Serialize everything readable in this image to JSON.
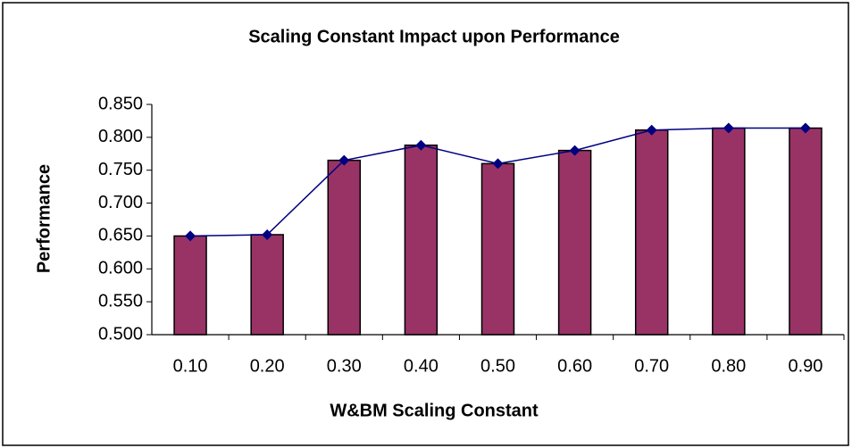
{
  "chart_data": {
    "type": "bar",
    "title": "Scaling Constant Impact upon Performance",
    "x_label": "W&BM Scaling Constant",
    "y_label": "Performance",
    "categories": [
      "0.10",
      "0.20",
      "0.30",
      "0.40",
      "0.50",
      "0.60",
      "0.70",
      "0.80",
      "0.90"
    ],
    "values": [
      0.65,
      0.652,
      0.765,
      0.788,
      0.76,
      0.78,
      0.811,
      0.814,
      0.814
    ],
    "color": "#993366",
    "line": true,
    "line_color": "#000080",
    "ylim": [
      0.5,
      0.85
    ],
    "yticks": [
      {
        "value": 0.5,
        "label": "0.500"
      },
      {
        "value": 0.55,
        "label": "0.550"
      },
      {
        "value": 0.6,
        "label": "0.600"
      },
      {
        "value": 0.65,
        "label": "0.650"
      },
      {
        "value": 0.7,
        "label": "0.700"
      },
      {
        "value": 0.75,
        "label": "0.750"
      },
      {
        "value": 0.8,
        "label": "0.800"
      },
      {
        "value": 0.85,
        "label": "0.850"
      }
    ],
    "grid": false
  }
}
